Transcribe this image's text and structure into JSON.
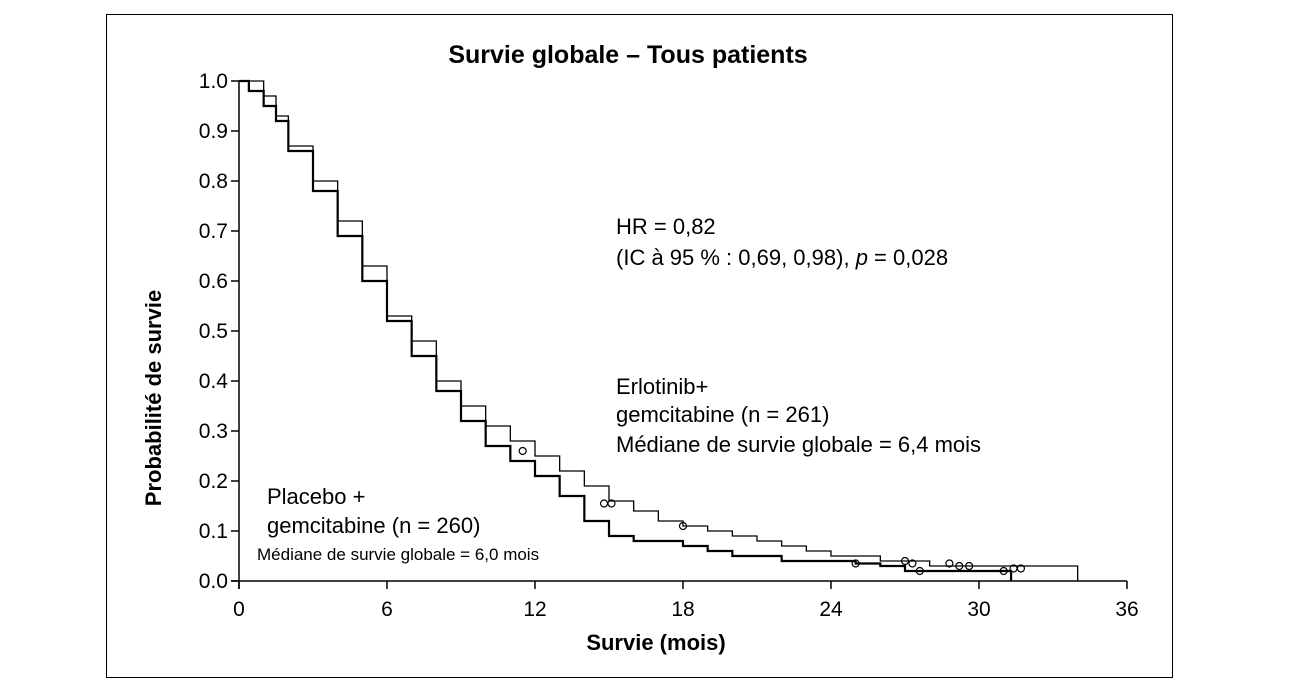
{
  "chart_data": {
    "type": "line",
    "title": "Survie globale – Tous patients",
    "xlabel": "Survie (mois)",
    "ylabel": "Probabilité de survie",
    "xlim": [
      0,
      36
    ],
    "ylim": [
      0,
      1.0
    ],
    "x_ticks": [
      0,
      6,
      12,
      18,
      24,
      30,
      36
    ],
    "y_ticks": [
      0.0,
      0.1,
      0.2,
      0.3,
      0.4,
      0.5,
      0.6,
      0.7,
      0.8,
      0.9,
      1.0
    ],
    "y_tick_labels": [
      "0.0",
      "0.1",
      "0.2",
      "0.3",
      "0.4",
      "0.5",
      "0.6",
      "0.7",
      "0.8",
      "0.9",
      "1.0"
    ],
    "grid": false,
    "annotations": {
      "hr_line1": "HR = 0,82",
      "hr_line2_prefix": "(IC à 95 % : 0,69, 0,98), ",
      "hr_line2_p": "p",
      "hr_line2_suffix": " = 0,028",
      "erlotinib_line1": "Erlotinib+",
      "erlotinib_line2": "gemcitabine (n = 261)",
      "erlotinib_median": "Médiane de survie globale = 6,4 mois",
      "placebo_line1": "Placebo +",
      "placebo_line2": "gemcitabine (n = 260)",
      "placebo_median": "Médiane de survie globale = 6,0 mois"
    },
    "series": [
      {
        "stroke_width": 1.3,
        "points": [
          [
            0,
            1.0
          ],
          [
            0.6,
            1.0
          ],
          [
            1.0,
            0.97
          ],
          [
            1.5,
            0.93
          ],
          [
            2.0,
            0.87
          ],
          [
            3.0,
            0.8
          ],
          [
            4.0,
            0.72
          ],
          [
            5.0,
            0.63
          ],
          [
            6.0,
            0.53
          ],
          [
            7.0,
            0.48
          ],
          [
            8.0,
            0.4
          ],
          [
            9.0,
            0.35
          ],
          [
            10.0,
            0.31
          ],
          [
            11.0,
            0.28
          ],
          [
            12.0,
            0.25
          ],
          [
            13.0,
            0.22
          ],
          [
            14.0,
            0.19
          ],
          [
            15.0,
            0.16
          ],
          [
            16.0,
            0.14
          ],
          [
            17.0,
            0.12
          ],
          [
            18.0,
            0.11
          ],
          [
            19.0,
            0.1
          ],
          [
            20.0,
            0.09
          ],
          [
            21.0,
            0.08
          ],
          [
            22.0,
            0.07
          ],
          [
            23.0,
            0.06
          ],
          [
            24.0,
            0.05
          ],
          [
            25.0,
            0.05
          ],
          [
            26.0,
            0.04
          ],
          [
            27.0,
            0.04
          ],
          [
            28.0,
            0.03
          ],
          [
            30.0,
            0.03
          ],
          [
            32.0,
            0.03
          ],
          [
            34.0,
            0.03
          ],
          [
            34.0,
            0.0
          ]
        ],
        "censored": [
          [
            11.5,
            0.26
          ],
          [
            14.8,
            0.155
          ],
          [
            15.1,
            0.155
          ],
          [
            18.0,
            0.11
          ],
          [
            27.0,
            0.04
          ],
          [
            27.3,
            0.035
          ],
          [
            28.8,
            0.035
          ],
          [
            29.2,
            0.03
          ],
          [
            29.6,
            0.03
          ],
          [
            31.4,
            0.025
          ],
          [
            31.7,
            0.025
          ]
        ]
      },
      {
        "stroke_width": 2.2,
        "points": [
          [
            0,
            1.0
          ],
          [
            0.4,
            0.98
          ],
          [
            1.0,
            0.95
          ],
          [
            1.5,
            0.92
          ],
          [
            2.0,
            0.86
          ],
          [
            3.0,
            0.78
          ],
          [
            4.0,
            0.69
          ],
          [
            5.0,
            0.6
          ],
          [
            6.0,
            0.52
          ],
          [
            7.0,
            0.45
          ],
          [
            8.0,
            0.38
          ],
          [
            9.0,
            0.32
          ],
          [
            10.0,
            0.27
          ],
          [
            11.0,
            0.24
          ],
          [
            12.0,
            0.21
          ],
          [
            13.0,
            0.17
          ],
          [
            14.0,
            0.12
          ],
          [
            15.0,
            0.09
          ],
          [
            16.0,
            0.08
          ],
          [
            17.0,
            0.08
          ],
          [
            18.0,
            0.07
          ],
          [
            19.0,
            0.06
          ],
          [
            20.0,
            0.05
          ],
          [
            21.0,
            0.05
          ],
          [
            22.0,
            0.04
          ],
          [
            24.0,
            0.04
          ],
          [
            25.0,
            0.035
          ],
          [
            26.0,
            0.03
          ],
          [
            27.0,
            0.02
          ],
          [
            28.0,
            0.02
          ],
          [
            31.0,
            0.02
          ],
          [
            31.3,
            0.02
          ],
          [
            31.3,
            0.0
          ]
        ],
        "censored": [
          [
            25.0,
            0.035
          ],
          [
            27.6,
            0.02
          ],
          [
            31.0,
            0.02
          ]
        ]
      }
    ]
  }
}
